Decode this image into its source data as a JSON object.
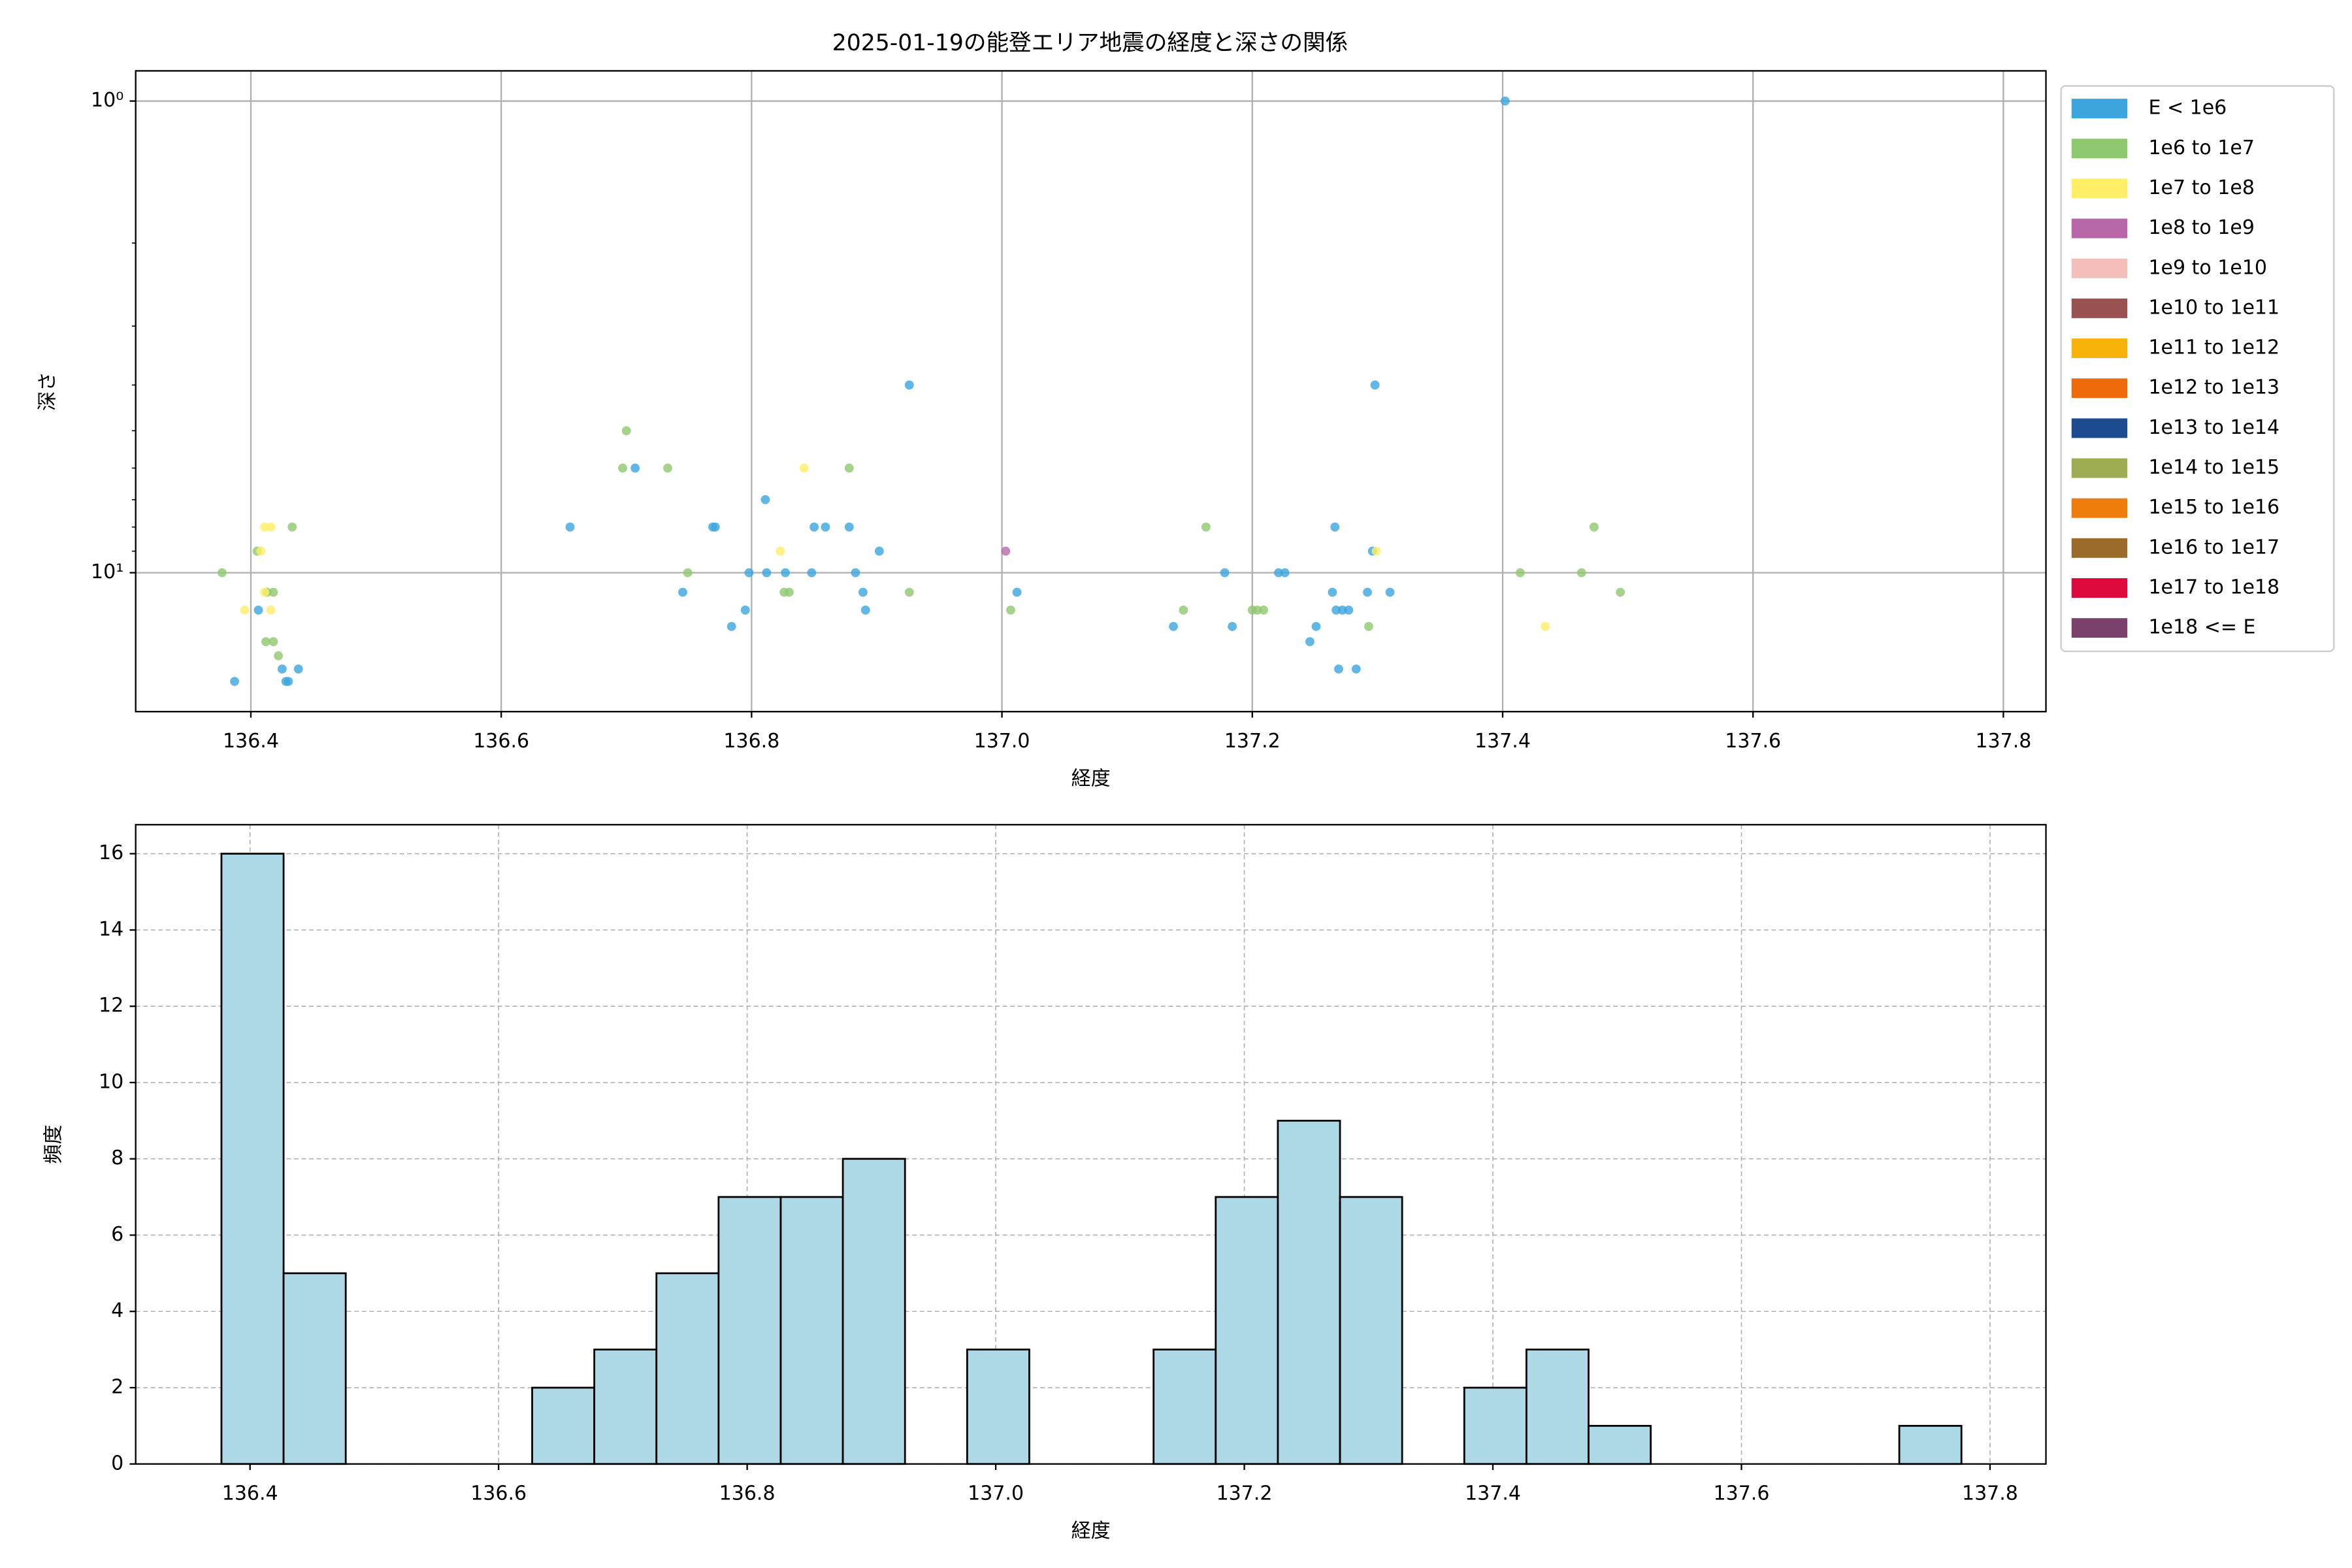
{
  "chart_data": [
    {
      "type": "scatter",
      "title": "2025-01-19の能登エリア地震の経度と深さの関係",
      "xlabel": "経度",
      "ylabel": "深さ",
      "xlim": [
        136.308,
        137.834
      ],
      "xticks": [
        136.4,
        136.6,
        136.8,
        {
          "value": 137,
          "label": "137.0"
        },
        137.2,
        137.4,
        137.6,
        137.8
      ],
      "ylim": [
        19.7,
        0.863
      ],
      "yscale": "log",
      "yticks": [
        {
          "value": 1,
          "label": "10⁰"
        },
        {
          "value": 10,
          "label": "10¹"
        }
      ],
      "yminorticks": [
        2,
        3,
        4,
        5,
        6,
        7,
        8,
        9
      ],
      "grid": true,
      "legend": "outside right",
      "series": [
        {
          "name": "E < 1e6",
          "color": "#3ca5dd",
          "x": [
            136.387,
            136.406,
            136.425,
            136.43,
            136.428,
            136.438,
            136.655,
            136.707,
            136.745,
            136.769,
            136.771,
            136.784,
            136.795,
            136.798,
            136.811,
            136.812,
            136.827,
            136.848,
            136.85,
            136.859,
            136.878,
            136.883,
            136.889,
            136.891,
            136.902,
            136.926,
            137.012,
            137.137,
            137.178,
            137.184,
            137.221,
            137.226,
            137.246,
            137.251,
            137.264,
            137.266,
            137.267,
            137.272,
            137.277,
            137.269,
            137.283,
            137.292,
            137.296,
            137.298,
            137.31,
            137.402
          ],
          "values": [
            17,
            12,
            16,
            17,
            17,
            16,
            8,
            6,
            11,
            8,
            8,
            13,
            12,
            10,
            7,
            10,
            10,
            10,
            8,
            8,
            8,
            10,
            11,
            12,
            9,
            4,
            11,
            13,
            10,
            13,
            10,
            10,
            14,
            13,
            11,
            8,
            12,
            12,
            12,
            16,
            16,
            11,
            9,
            4,
            11,
            1
          ]
        },
        {
          "name": "1e6 to 1e7",
          "color": "#8ec86f",
          "x": [
            136.377,
            136.405,
            136.413,
            136.418,
            136.412,
            136.418,
            136.422,
            136.433,
            136.697,
            136.7,
            136.733,
            136.749,
            136.826,
            136.83,
            136.878,
            136.926,
            137.007,
            137.145,
            137.163,
            137.2,
            137.204,
            137.209,
            137.293,
            137.414,
            137.463,
            137.473,
            137.494
          ],
          "values": [
            10,
            9,
            11,
            11,
            14,
            14,
            15,
            8,
            6,
            5,
            6,
            10,
            11,
            11,
            6,
            11,
            12,
            12,
            8,
            12,
            12,
            12,
            13,
            10,
            10,
            8,
            11
          ]
        },
        {
          "name": "1e7 to 1e8",
          "color": "#ffee66",
          "x": [
            136.395,
            136.411,
            136.416,
            136.408,
            136.411,
            136.416,
            136.823,
            136.842,
            137.299,
            137.434
          ],
          "values": [
            12,
            8,
            8,
            9,
            11,
            12,
            9,
            6,
            9,
            13
          ]
        },
        {
          "name": "1e8 to 1e9",
          "color": "#b868a8",
          "x": [
            137.003
          ],
          "values": [
            9
          ]
        },
        {
          "name": "1e9 to 1e10",
          "color": "#f4bfba",
          "x": [],
          "values": []
        },
        {
          "name": "1e10 to 1e11",
          "color": "#9a5250",
          "x": [],
          "values": []
        },
        {
          "name": "1e11 to 1e12",
          "color": "#f7b30a",
          "x": [],
          "values": []
        },
        {
          "name": "1e12 to 1e13",
          "color": "#ef6a0b",
          "x": [],
          "values": []
        },
        {
          "name": "1e13 to 1e14",
          "color": "#1c4b8f",
          "x": [],
          "values": []
        },
        {
          "name": "1e14 to 1e15",
          "color": "#9ead52",
          "x": [],
          "values": []
        },
        {
          "name": "1e15 to 1e16",
          "color": "#ef7d0c",
          "x": [],
          "values": []
        },
        {
          "name": "1e16 to 1e17",
          "color": "#9a6b2b",
          "x": [],
          "values": []
        },
        {
          "name": "1e17 to 1e18",
          "color": "#de0a3e",
          "x": [],
          "values": []
        },
        {
          "name": "1e18 <= E",
          "color": "#7a416c",
          "x": [],
          "values": []
        }
      ]
    },
    {
      "type": "histogram",
      "xlabel": "経度",
      "ylabel": "頻度",
      "xlim": [
        136.308,
        137.845
      ],
      "xticks": [
        136.4,
        136.6,
        136.8,
        {
          "value": 137,
          "label": "137.0"
        },
        137.2,
        137.4,
        137.6,
        137.8
      ],
      "ylim": [
        0,
        16.76
      ],
      "yticks": [
        0,
        2,
        4,
        6,
        8,
        10,
        12,
        14,
        16
      ],
      "grid": true,
      "color": "#add8e6",
      "edgecolor": "#000000",
      "bins": [
        136.377,
        136.427,
        136.477,
        136.527,
        136.577,
        136.627,
        136.677,
        136.727,
        136.777,
        136.827,
        136.877,
        136.927,
        136.977,
        137.027,
        137.077,
        137.127,
        137.177,
        137.227,
        137.277,
        137.327,
        137.377,
        137.427,
        137.477,
        137.527,
        137.577,
        137.627,
        137.677,
        137.727,
        137.777
      ],
      "counts": [
        16,
        5,
        0,
        0,
        0,
        2,
        3,
        5,
        7,
        7,
        8,
        0,
        3,
        0,
        0,
        3,
        7,
        9,
        7,
        0,
        2,
        3,
        1,
        0,
        0,
        0,
        0,
        1
      ]
    }
  ]
}
